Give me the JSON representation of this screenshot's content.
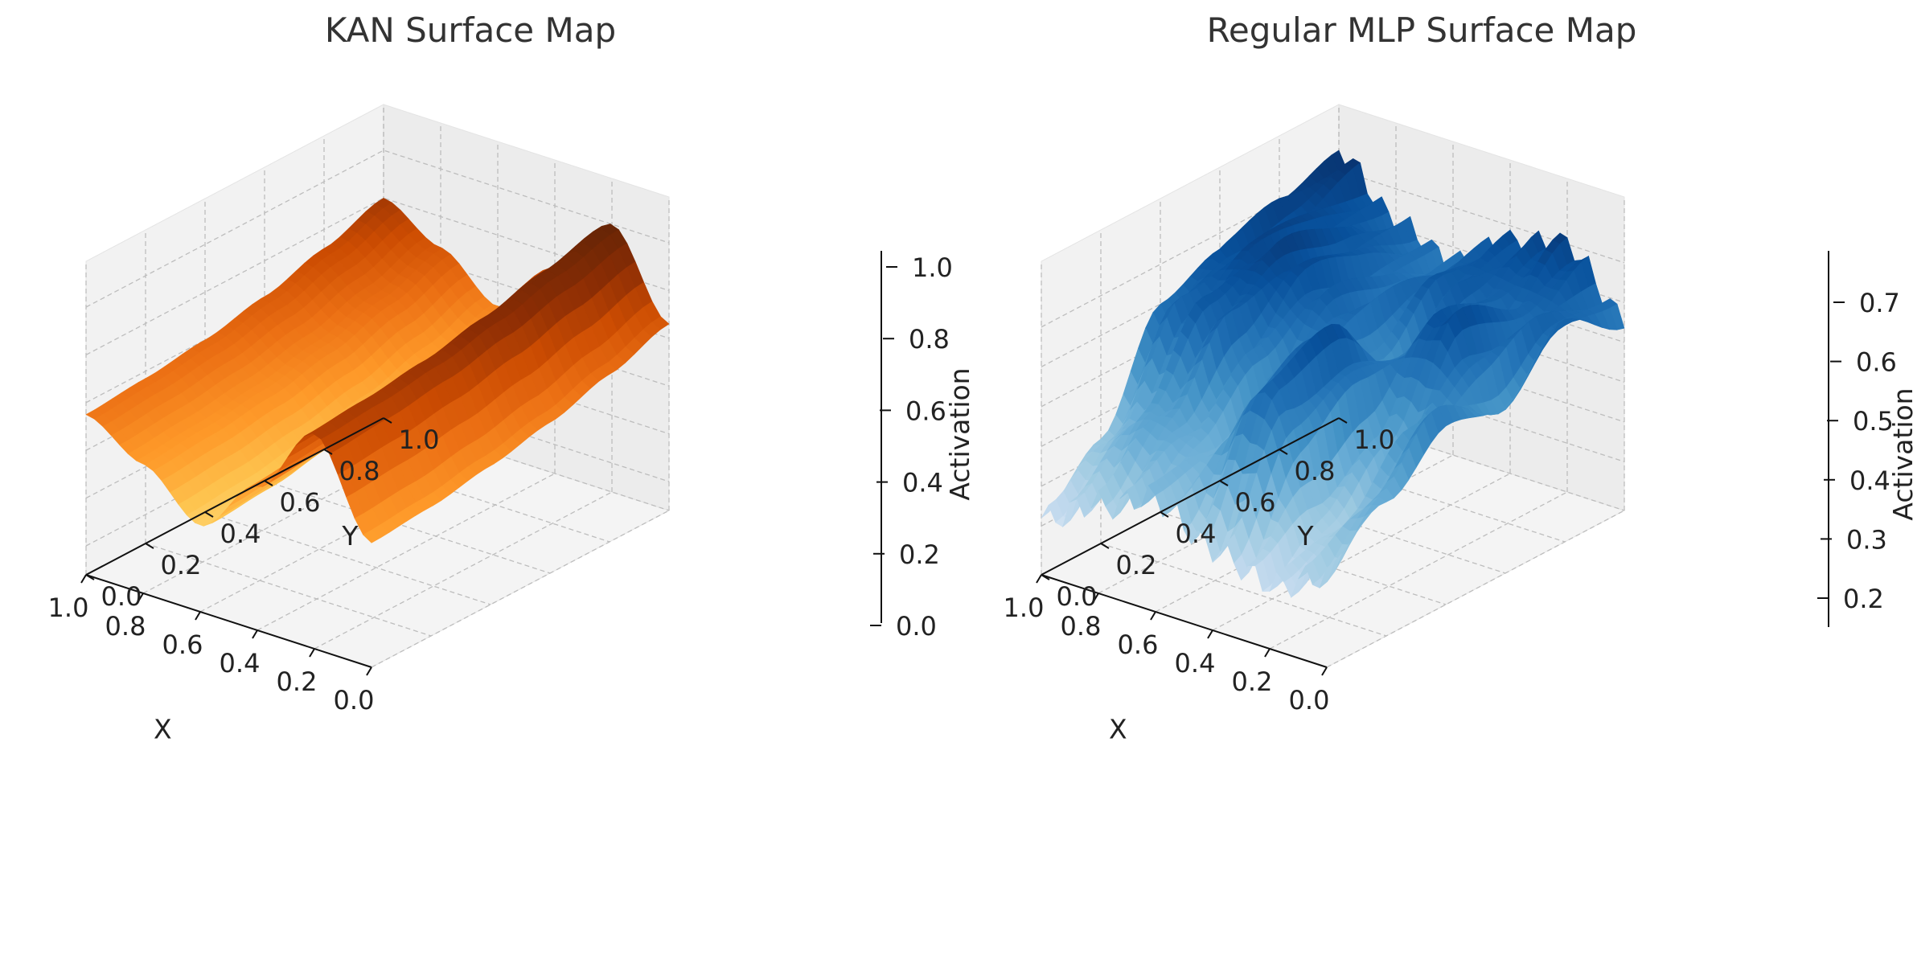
{
  "chart_data": [
    {
      "type": "surface",
      "title": "KAN Surface Map",
      "xlabel": "X",
      "ylabel": "Y",
      "zlabel": "Activation",
      "xlim": [
        0.0,
        1.0
      ],
      "ylim": [
        0.0,
        1.0
      ],
      "zlim": [
        0.0,
        1.0
      ],
      "x_ticks": [
        "0.0",
        "0.2",
        "0.4",
        "0.6",
        "0.8",
        "1.0"
      ],
      "y_ticks": [
        "0.0",
        "0.2",
        "0.4",
        "0.6",
        "0.8",
        "1.0"
      ],
      "z_ticks": [
        "0.0",
        "0.2",
        "0.4",
        "0.6",
        "0.8",
        "1.0"
      ],
      "colormap": "YlOrBr",
      "grid": true,
      "surface": {
        "x": [
          0.0,
          0.2,
          0.4,
          0.6,
          0.8,
          1.0
        ],
        "y": [
          0.0,
          0.2,
          0.4,
          0.6,
          0.8,
          1.0
        ],
        "z": [
          [
            0.55,
            0.42,
            0.24,
            0.48,
            0.78,
            0.4
          ],
          [
            0.57,
            0.44,
            0.26,
            0.5,
            0.8,
            0.42
          ],
          [
            0.6,
            0.47,
            0.3,
            0.54,
            0.83,
            0.46
          ],
          [
            0.65,
            0.52,
            0.35,
            0.59,
            0.88,
            0.51
          ],
          [
            0.72,
            0.59,
            0.42,
            0.66,
            0.94,
            0.58
          ],
          [
            0.8,
            0.67,
            0.5,
            0.74,
            1.0,
            0.66
          ]
        ]
      }
    },
    {
      "type": "surface",
      "title": "Regular MLP Surface Map",
      "xlabel": "X",
      "ylabel": "Y",
      "zlabel": "Activation",
      "xlim": [
        0.0,
        1.0
      ],
      "ylim": [
        0.0,
        1.0
      ],
      "zlim": [
        0.15,
        0.75
      ],
      "x_ticks": [
        "0.0",
        "0.2",
        "0.4",
        "0.6",
        "0.8",
        "1.0"
      ],
      "y_ticks": [
        "0.0",
        "0.2",
        "0.4",
        "0.6",
        "0.8",
        "1.0"
      ],
      "z_ticks": [
        "0.2",
        "0.3",
        "0.4",
        "0.5",
        "0.6",
        "0.7"
      ],
      "colormap": "Blues",
      "grid": true,
      "surface": {
        "x": [
          0.0,
          0.2,
          0.4,
          0.6,
          0.8,
          1.0
        ],
        "y": [
          0.0,
          0.2,
          0.4,
          0.6,
          0.8,
          1.0
        ],
        "z": [
          [
            0.22,
            0.3,
            0.36,
            0.28,
            0.24,
            0.3
          ],
          [
            0.34,
            0.45,
            0.4,
            0.62,
            0.3,
            0.42
          ],
          [
            0.6,
            0.63,
            0.5,
            0.66,
            0.42,
            0.55
          ],
          [
            0.66,
            0.7,
            0.62,
            0.5,
            0.68,
            0.48
          ],
          [
            0.7,
            0.66,
            0.58,
            0.64,
            0.6,
            0.62
          ],
          [
            0.75,
            0.62,
            0.56,
            0.66,
            0.7,
            0.56
          ]
        ]
      }
    }
  ]
}
